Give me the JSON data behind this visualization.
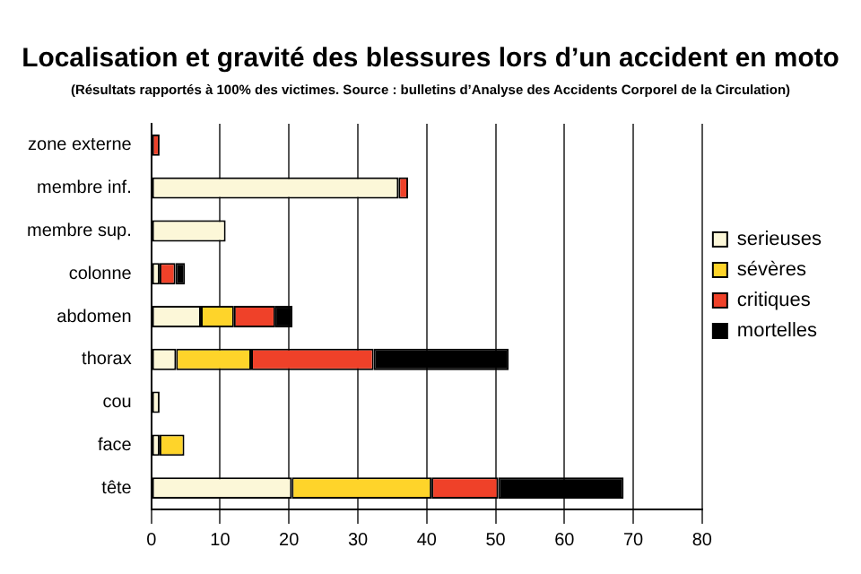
{
  "chart_data": {
    "type": "bar",
    "orientation": "horizontal",
    "stacked": true,
    "title": "Localisation et gravité des blessures lors d’un accident en moto",
    "subtitle": "(Résultats rapportés à 100% des victimes. Source : bulletins d’Analyse des Accidents Corporel de la Circulation)",
    "categories": [
      "zone externe",
      "membre inf.",
      "membre sup.",
      "colonne",
      "abdomen",
      "thorax",
      "cou",
      "face",
      "tête"
    ],
    "series": [
      {
        "name": "serieuses",
        "color": "#fcf7d8",
        "values": [
          0,
          35.9,
          10.8,
          1.2,
          7.2,
          3.6,
          1.2,
          1.2,
          20.4
        ]
      },
      {
        "name": "sévères",
        "color": "#fed42a",
        "values": [
          0,
          0,
          0,
          0,
          4.8,
          10.9,
          0,
          3.6,
          20.3
        ]
      },
      {
        "name": "critiques",
        "color": "#ef4129",
        "values": [
          1.2,
          1.4,
          0,
          2.3,
          6.0,
          17.8,
          0,
          0,
          9.7
        ]
      },
      {
        "name": "mortelles",
        "color": "#000000",
        "values": [
          0,
          0,
          0,
          1.4,
          2.5,
          19.6,
          0,
          0,
          18.2
        ]
      }
    ],
    "xlim": [
      0,
      80
    ],
    "xticks": [
      0,
      10,
      20,
      30,
      40,
      50,
      60,
      70,
      80
    ],
    "grid": "x",
    "legend": "right"
  }
}
